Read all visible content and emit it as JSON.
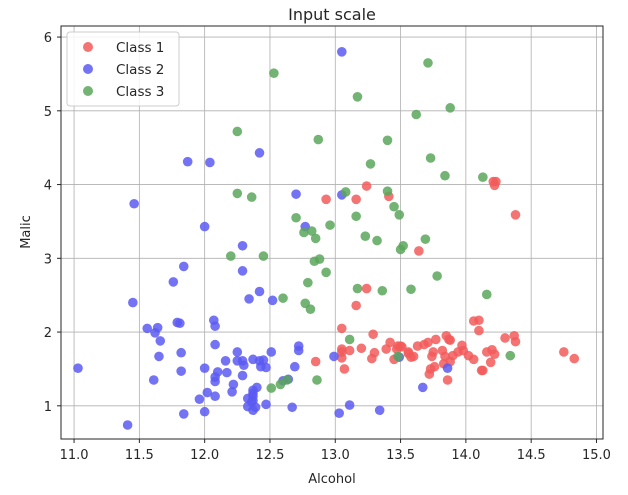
{
  "chart_data": {
    "type": "scatter",
    "title": "Input scale",
    "xlabel": "Alcohol",
    "ylabel": "Malic",
    "xlim": [
      10.9,
      15.05
    ],
    "ylim": [
      0.55,
      6.15
    ],
    "xticks": [
      "11.0",
      "11.5",
      "12.0",
      "12.5",
      "13.0",
      "13.5",
      "14.0",
      "14.5",
      "15.0"
    ],
    "yticks": [
      "1",
      "2",
      "3",
      "4",
      "5",
      "6"
    ],
    "grid": true,
    "legend_position": "top-left",
    "series": [
      {
        "name": "Class 1",
        "color": "#f25a5a",
        "points": [
          [
            14.83,
            1.64
          ],
          [
            14.75,
            1.73
          ],
          [
            14.38,
            3.59
          ],
          [
            14.38,
            1.87
          ],
          [
            14.37,
            1.95
          ],
          [
            14.3,
            1.92
          ],
          [
            14.23,
            4.04
          ],
          [
            14.22,
            3.99
          ],
          [
            14.22,
            1.7
          ],
          [
            14.21,
            4.04
          ],
          [
            14.2,
            1.76
          ],
          [
            14.19,
            1.59
          ],
          [
            14.16,
            1.73
          ],
          [
            14.13,
            1.48
          ],
          [
            14.12,
            1.48
          ],
          [
            14.1,
            2.16
          ],
          [
            14.1,
            2.02
          ],
          [
            14.06,
            2.15
          ],
          [
            14.06,
            1.63
          ],
          [
            14.02,
            1.68
          ],
          [
            13.94,
            1.73
          ],
          [
            13.9,
            1.68
          ],
          [
            13.88,
            1.89
          ],
          [
            13.88,
            1.6
          ],
          [
            13.87,
            1.9
          ],
          [
            13.86,
            1.35
          ],
          [
            13.84,
            1.67
          ],
          [
            13.83,
            1.57
          ],
          [
            13.82,
            1.75
          ],
          [
            13.77,
            1.9
          ],
          [
            13.76,
            1.53
          ],
          [
            13.75,
            1.73
          ],
          [
            13.74,
            1.67
          ],
          [
            13.73,
            1.5
          ],
          [
            13.72,
            1.43
          ],
          [
            13.71,
            1.86
          ],
          [
            13.68,
            1.83
          ],
          [
            13.64,
            3.1
          ],
          [
            13.63,
            1.81
          ],
          [
            13.58,
            1.66
          ],
          [
            13.56,
            1.73
          ],
          [
            13.56,
            1.71
          ],
          [
            13.51,
            1.8
          ],
          [
            13.5,
            1.81
          ],
          [
            13.48,
            1.81
          ],
          [
            13.41,
            3.84
          ],
          [
            13.39,
            1.77
          ],
          [
            13.3,
            1.72
          ],
          [
            13.29,
            1.97
          ],
          [
            13.28,
            1.64
          ],
          [
            13.24,
            2.59
          ],
          [
            13.24,
            3.98
          ],
          [
            13.2,
            1.78
          ],
          [
            13.16,
            2.36
          ],
          [
            13.16,
            3.8
          ],
          [
            13.07,
            1.5
          ],
          [
            13.05,
            2.05
          ],
          [
            13.05,
            1.77
          ],
          [
            13.05,
            1.65
          ],
          [
            13.05,
            1.73
          ],
          [
            12.93,
            3.8
          ],
          [
            12.85,
            1.6
          ],
          [
            13.11,
            1.75
          ],
          [
            13.42,
            1.86
          ],
          [
            13.97,
            1.82
          ],
          [
            13.98,
            1.75
          ],
          [
            13.47,
            1.77
          ],
          [
            13.6,
            1.67
          ],
          [
            13.45,
            1.63
          ],
          [
            13.85,
            1.95
          ]
        ]
      },
      {
        "name": "Class 2",
        "color": "#5a5af2",
        "points": [
          [
            12.37,
            0.94
          ],
          [
            12.33,
            1.1
          ],
          [
            12.64,
            1.36
          ],
          [
            13.67,
            1.25
          ],
          [
            12.37,
            1.13
          ],
          [
            12.17,
            1.45
          ],
          [
            12.37,
            1.21
          ],
          [
            13.11,
            1.01
          ],
          [
            12.37,
            1.17
          ],
          [
            13.34,
            0.94
          ],
          [
            12.21,
            1.19
          ],
          [
            12.29,
            1.61
          ],
          [
            13.86,
            1.51
          ],
          [
            13.49,
            1.66
          ],
          [
            12.99,
            1.67
          ],
          [
            11.96,
            1.09
          ],
          [
            11.66,
            1.88
          ],
          [
            13.03,
            0.9
          ],
          [
            11.84,
            2.89
          ],
          [
            12.33,
            0.99
          ],
          [
            12.7,
            3.87
          ],
          [
            12.0,
            0.92
          ],
          [
            12.72,
            1.81
          ],
          [
            12.08,
            1.13
          ],
          [
            13.05,
            3.86
          ],
          [
            11.84,
            0.89
          ],
          [
            12.67,
            0.98
          ],
          [
            12.16,
            1.61
          ],
          [
            11.65,
            1.67
          ],
          [
            11.64,
            2.06
          ],
          [
            12.08,
            1.33
          ],
          [
            12.08,
            1.83
          ],
          [
            12.0,
            1.51
          ],
          [
            12.69,
            1.53
          ],
          [
            12.29,
            2.83
          ],
          [
            11.62,
            1.99
          ],
          [
            12.47,
            1.52
          ],
          [
            11.81,
            2.12
          ],
          [
            12.29,
            1.41
          ],
          [
            12.37,
            1.07
          ],
          [
            12.29,
            3.17
          ],
          [
            12.08,
            2.08
          ],
          [
            12.6,
            1.34
          ],
          [
            12.34,
            2.45
          ],
          [
            11.82,
            1.72
          ],
          [
            12.51,
            1.73
          ],
          [
            12.42,
            2.55
          ],
          [
            12.25,
            1.73
          ],
          [
            12.72,
            1.75
          ],
          [
            12.22,
            1.29
          ],
          [
            11.61,
            1.35
          ],
          [
            11.46,
            3.74
          ],
          [
            12.52,
            2.43
          ],
          [
            11.76,
            2.68
          ],
          [
            11.41,
            0.74
          ],
          [
            12.08,
            1.39
          ],
          [
            11.03,
            1.51
          ],
          [
            11.82,
            1.47
          ],
          [
            12.42,
            1.61
          ],
          [
            12.77,
            3.43
          ],
          [
            12.0,
            3.43
          ],
          [
            11.45,
            2.4
          ],
          [
            11.56,
            2.05
          ],
          [
            12.42,
            4.43
          ],
          [
            13.05,
            5.8
          ],
          [
            11.87,
            4.31
          ],
          [
            12.07,
            2.16
          ],
          [
            12.43,
            1.53
          ],
          [
            11.79,
            2.13
          ],
          [
            12.37,
            1.63
          ],
          [
            12.04,
            4.3
          ],
          [
            12.25,
            1.61
          ],
          [
            12.36,
            1.05
          ],
          [
            12.39,
            0.98
          ],
          [
            12.45,
            1.62
          ],
          [
            12.3,
            1.55
          ],
          [
            12.47,
            1.02
          ],
          [
            12.02,
            1.18
          ],
          [
            12.4,
            1.25
          ],
          [
            12.1,
            1.46
          ]
        ]
      },
      {
        "name": "Class 3",
        "color": "#5aa65a",
        "points": [
          [
            12.86,
            1.35
          ],
          [
            12.88,
            2.99
          ],
          [
            12.81,
            2.31
          ],
          [
            12.7,
            3.55
          ],
          [
            12.51,
            1.24
          ],
          [
            12.6,
            2.46
          ],
          [
            12.25,
            4.72
          ],
          [
            12.53,
            5.51
          ],
          [
            13.49,
            3.59
          ],
          [
            12.84,
            2.96
          ],
          [
            12.93,
            2.81
          ],
          [
            13.36,
            2.56
          ],
          [
            13.52,
            3.17
          ],
          [
            13.62,
            4.95
          ],
          [
            12.25,
            3.88
          ],
          [
            13.16,
            3.57
          ],
          [
            13.88,
            5.04
          ],
          [
            12.87,
            4.61
          ],
          [
            13.32,
            3.24
          ],
          [
            13.08,
            3.9
          ],
          [
            13.5,
            3.12
          ],
          [
            12.79,
            2.67
          ],
          [
            13.11,
            1.9
          ],
          [
            13.23,
            3.3
          ],
          [
            12.58,
            1.29
          ],
          [
            13.17,
            5.19
          ],
          [
            13.84,
            4.12
          ],
          [
            12.45,
            3.03
          ],
          [
            14.34,
            1.68
          ],
          [
            13.48,
            1.67
          ],
          [
            12.36,
            3.83
          ],
          [
            13.69,
            3.26
          ],
          [
            12.85,
            3.27
          ],
          [
            12.96,
            3.45
          ],
          [
            13.78,
            2.76
          ],
          [
            13.73,
            4.36
          ],
          [
            13.45,
            3.7
          ],
          [
            12.82,
            3.37
          ],
          [
            13.58,
            2.58
          ],
          [
            13.4,
            4.6
          ],
          [
            12.2,
            3.03
          ],
          [
            12.77,
            2.39
          ],
          [
            14.16,
            2.51
          ],
          [
            13.71,
            5.65
          ],
          [
            13.4,
            3.91
          ],
          [
            13.27,
            4.28
          ],
          [
            13.17,
            2.59
          ],
          [
            14.13,
            4.1
          ],
          [
            12.63,
            1.35
          ],
          [
            12.76,
            3.35
          ]
        ]
      }
    ]
  }
}
